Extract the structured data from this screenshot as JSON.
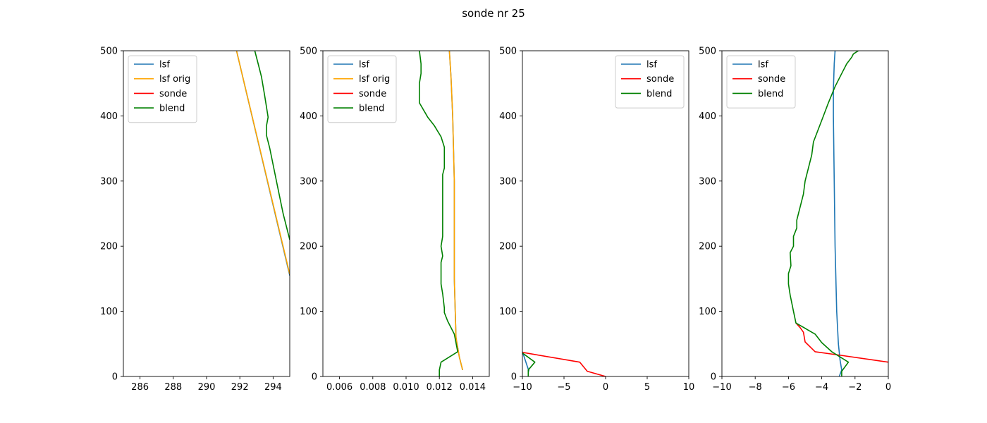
{
  "title": "sonde nr 25",
  "colors": {
    "lsf": "#1f77b4",
    "lsf_orig": "#ffa500",
    "sonde": "#ff0000",
    "blend": "#008000"
  },
  "chart_data": [
    {
      "type": "line",
      "xlim": [
        285,
        295
      ],
      "ylim": [
        0,
        500
      ],
      "xticks": [
        286,
        288,
        290,
        292,
        294
      ],
      "yticks": [
        0,
        100,
        200,
        300,
        400,
        500
      ],
      "legend": "upper-left",
      "series": [
        {
          "name": "lsf",
          "color": "#1f77b4",
          "x": [
            295.0,
            291.8
          ],
          "y": [
            155,
            500
          ]
        },
        {
          "name": "lsf orig",
          "color": "#ffa500",
          "x": [
            295.0,
            291.8
          ],
          "y": [
            157,
            500
          ]
        },
        {
          "name": "sonde",
          "color": "#ff0000",
          "x": [],
          "y": []
        },
        {
          "name": "blend",
          "color": "#008000",
          "x": [
            295.0,
            294.6,
            294.2,
            293.8,
            293.6,
            293.6,
            293.7,
            293.5,
            293.3,
            293.1,
            292.9
          ],
          "y": [
            210,
            250,
            300,
            350,
            370,
            385,
            398,
            430,
            460,
            480,
            500
          ]
        }
      ]
    },
    {
      "type": "line",
      "xlim": [
        0.005,
        0.015
      ],
      "ylim": [
        0,
        500
      ],
      "xticks": [
        "0.006",
        "0.008",
        "0.010",
        "0.012",
        "0.014"
      ],
      "xtick_values": [
        0.006,
        0.008,
        0.01,
        0.012,
        0.014
      ],
      "yticks": [
        0,
        100,
        200,
        300,
        400,
        500
      ],
      "legend": "upper-left",
      "series": [
        {
          "name": "lsf",
          "color": "#1f77b4",
          "x": [
            0.0134,
            0.0132,
            0.013,
            0.0129,
            0.0129,
            0.0128,
            0.0127,
            0.0126
          ],
          "y": [
            10,
            30,
            60,
            150,
            300,
            400,
            460,
            500
          ]
        },
        {
          "name": "lsf orig",
          "color": "#ffa500",
          "x": [
            0.0134,
            0.0132,
            0.013,
            0.0129,
            0.0129,
            0.0128,
            0.0127,
            0.0126
          ],
          "y": [
            10,
            30,
            60,
            150,
            300,
            400,
            460,
            500
          ]
        },
        {
          "name": "sonde",
          "color": "#ff0000",
          "x": [],
          "y": []
        },
        {
          "name": "blend",
          "color": "#008000",
          "x": [
            0.012,
            0.012,
            0.0121,
            0.0131,
            0.0129,
            0.0125,
            0.0123,
            0.0123,
            0.0122,
            0.0121,
            0.0121,
            0.0122,
            0.0121,
            0.0122,
            0.0122,
            0.0122,
            0.0122,
            0.0122,
            0.0122,
            0.0122,
            0.0122,
            0.0123,
            0.0123,
            0.0123,
            0.0121,
            0.0117,
            0.0113,
            0.0108,
            0.0108,
            0.0108,
            0.0109,
            0.0109,
            0.0108
          ],
          "y": [
            0,
            10,
            22,
            38,
            65,
            85,
            98,
            105,
            127,
            142,
            175,
            185,
            200,
            215,
            235,
            248,
            262,
            275,
            285,
            300,
            310,
            320,
            330,
            352,
            368,
            385,
            398,
            420,
            435,
            450,
            465,
            480,
            500
          ]
        }
      ]
    },
    {
      "type": "line",
      "xlim": [
        -10,
        10
      ],
      "ylim": [
        0,
        500
      ],
      "xticks": [
        "−10",
        "−5",
        "0",
        "5",
        "10"
      ],
      "xtick_values": [
        -10,
        -5,
        0,
        5,
        10
      ],
      "yticks": [
        0,
        100,
        200,
        300,
        400,
        500
      ],
      "legend": "upper-right",
      "series": [
        {
          "name": "lsf",
          "color": "#1f77b4",
          "x": [
            -10.0,
            -9.4,
            -9.2
          ],
          "y": [
            38,
            15,
            8
          ]
        },
        {
          "name": "sonde",
          "color": "#ff0000",
          "x": [
            -10.0,
            -3.1,
            -2.2,
            0.0
          ],
          "y": [
            37,
            22,
            8,
            0
          ]
        },
        {
          "name": "blend",
          "color": "#008000",
          "x": [
            -10.0,
            -8.5,
            -9.3,
            -9.3
          ],
          "y": [
            36,
            22,
            10,
            0
          ]
        }
      ]
    },
    {
      "type": "line",
      "xlim": [
        -10,
        0
      ],
      "ylim": [
        0,
        500
      ],
      "xticks": [
        "−10",
        "−8",
        "−6",
        "−4",
        "−2",
        "0"
      ],
      "xtick_values": [
        -10,
        -8,
        -6,
        -4,
        -2,
        0
      ],
      "yticks": [
        0,
        100,
        200,
        300,
        400,
        500
      ],
      "legend": "upper-left",
      "series": [
        {
          "name": "lsf",
          "color": "#1f77b4",
          "x": [
            -2.95,
            -2.8,
            -2.9,
            -3.0,
            -3.1,
            -3.2,
            -3.25,
            -3.3,
            -3.3,
            -3.25,
            -3.2
          ],
          "y": [
            0,
            10,
            25,
            50,
            100,
            200,
            300,
            400,
            440,
            480,
            500
          ]
        },
        {
          "name": "sonde",
          "color": "#ff0000",
          "x": [
            0.0,
            -3.0,
            -4.4,
            -5.0,
            -5.1,
            -5.3,
            -5.55
          ],
          "y": [
            22,
            33,
            38,
            53,
            68,
            75,
            82
          ]
        },
        {
          "name": "blend",
          "color": "#008000",
          "x": [
            -2.8,
            -2.8,
            -2.4,
            -3.4,
            -4.0,
            -4.4,
            -5.55,
            -5.7,
            -5.9,
            -6.0,
            -6.0,
            -5.85,
            -5.9,
            -5.7,
            -5.7,
            -5.5,
            -5.5,
            -5.3,
            -5.1,
            -5.0,
            -4.8,
            -4.6,
            -4.5,
            -4.2,
            -3.9,
            -3.6,
            -3.2,
            -2.8,
            -2.5,
            -2.2,
            -2.1,
            -1.8
          ],
          "y": [
            0,
            8,
            22,
            38,
            52,
            65,
            82,
            100,
            125,
            142,
            158,
            170,
            190,
            200,
            215,
            228,
            240,
            260,
            280,
            300,
            320,
            340,
            360,
            380,
            400,
            420,
            445,
            465,
            480,
            490,
            495,
            500
          ]
        }
      ]
    }
  ]
}
